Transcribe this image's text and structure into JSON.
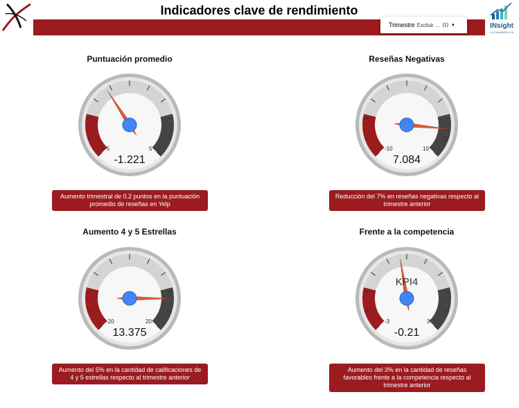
{
  "header": {
    "title": "Indicadores clave de rendimiento",
    "filter": {
      "label": "Trimestre",
      "value": "Excluir ...",
      "count": "(1)",
      "caret": "▾"
    },
    "logo_right": {
      "text": "INsight",
      "subtext": "LATINAMERICA"
    }
  },
  "colors": {
    "brand_red": "#9b1b1f",
    "dark_band": "#444444",
    "needle": "#e05a3a",
    "hub": "#4285f4"
  },
  "panels": [
    {
      "title": "Puntuación promedio",
      "min": "-5",
      "max": "5",
      "value": "-1.221",
      "label": "",
      "needle": -1.221,
      "low": -5,
      "high": 5,
      "note": "Aumento trimestral de 0.2 puntos en la puntuación promedio de reseñas en Yelp"
    },
    {
      "title": "Reseñas Negativas",
      "min": "-10",
      "max": "10",
      "value": "7.084",
      "label": "",
      "needle": 7.084,
      "low": -10,
      "high": 10,
      "note": "Reducción del 7% en reseñas negativas respecto al trimestre anterior"
    },
    {
      "title": "Aumento 4 y 5 Estrellas",
      "min": "-20",
      "max": "20",
      "value": "13.375",
      "label": "",
      "needle": 13.375,
      "low": -20,
      "high": 20,
      "note": "Aumento del 5% en la cantidad de calificaciones de 4 y 5 estrellas respecto al trimestre anterior"
    },
    {
      "title": "Frente a la competencia",
      "min": "-3",
      "max": "3",
      "value": "-0.21",
      "label": "KPI4",
      "needle": -0.21,
      "low": -3,
      "high": 3,
      "note": "Aumento del 3% en la cantidad de reseñas favorables frente a la competencia respecto al trimestre anterior"
    }
  ]
}
